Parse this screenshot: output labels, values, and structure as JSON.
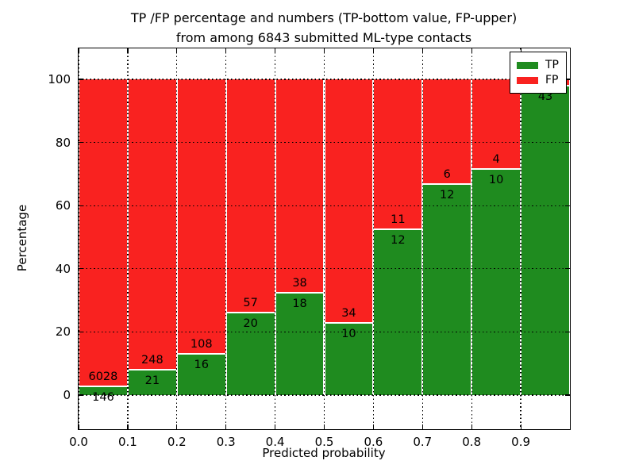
{
  "title": {
    "line1": "TP /FP percentage and numbers (TP-bottom value, FP-upper)",
    "line2": "from among 6843 submitted ML-type contacts"
  },
  "x_axis": {
    "label": "Predicted probability",
    "ticks": [
      "0.0",
      "0.1",
      "0.2",
      "0.3",
      "0.4",
      "0.5",
      "0.6",
      "0.7",
      "0.8",
      "0.9"
    ]
  },
  "y_axis": {
    "label": "Percentage",
    "ticks": [
      "0",
      "20",
      "40",
      "60",
      "80",
      "100"
    ],
    "tick_values": [
      0,
      20,
      40,
      60,
      80,
      100
    ]
  },
  "legend": {
    "items": [
      {
        "label": "TP",
        "color": "#1f8b1f"
      },
      {
        "label": "FP",
        "color": "#f92220"
      }
    ]
  },
  "colors": {
    "tp": "#1f8b1f",
    "fp": "#f92220",
    "background": "#ffffff",
    "grid": "#000000",
    "segment_divider": "#ffffff"
  },
  "chart_data": {
    "type": "bar",
    "stacked": true,
    "normalized_to": 100,
    "title": "TP /FP percentage and numbers (TP-bottom value, FP-upper) from among 6843 submitted ML-type contacts",
    "xlabel": "Predicted probability",
    "ylabel": "Percentage",
    "grid": "dotted",
    "legend_position": "upper right",
    "x_bin_edges": [
      0.0,
      0.1,
      0.2,
      0.3,
      0.4,
      0.5,
      0.6,
      0.7,
      0.8,
      0.9,
      1.0
    ],
    "ylim_displayed": [
      -10.8,
      109.3
    ],
    "total_contacts_stated": 6843,
    "bins": [
      {
        "range": "0.0-0.1",
        "tp_count_label": "146",
        "fp_count_label": "6028",
        "tp_pct": 2.4
      },
      {
        "range": "0.1-0.2",
        "tp_count_label": "21",
        "fp_count_label": "248",
        "tp_pct": 7.8
      },
      {
        "range": "0.2-0.3",
        "tp_count_label": "16",
        "fp_count_label": "108",
        "tp_pct": 12.9
      },
      {
        "range": "0.3-0.4",
        "tp_count_label": "20",
        "fp_count_label": "57",
        "tp_pct": 26.0
      },
      {
        "range": "0.4-0.5",
        "tp_count_label": "18",
        "fp_count_label": "38",
        "tp_pct": 32.1
      },
      {
        "range": "0.5-0.6",
        "tp_count_label": "10",
        "fp_count_label": "34",
        "tp_pct": 22.7
      },
      {
        "range": "0.6-0.7",
        "tp_count_label": "12",
        "fp_count_label": "11",
        "tp_pct": 52.2
      },
      {
        "range": "0.7-0.8",
        "tp_count_label": "12",
        "fp_count_label": "6",
        "tp_pct": 66.7
      },
      {
        "range": "0.8-0.9",
        "tp_count_label": "10",
        "fp_count_label": "4",
        "tp_pct": 71.4
      },
      {
        "range": "0.9-1.0",
        "tp_count_label": "43",
        "fp_count_label": "",
        "tp_pct": 97.7
      }
    ],
    "series": [
      {
        "name": "TP",
        "color": "#1f8b1f",
        "values_pct": [
          2.4,
          7.8,
          12.9,
          26.0,
          32.1,
          22.7,
          52.2,
          66.7,
          71.4,
          97.7
        ]
      },
      {
        "name": "FP",
        "color": "#f92220",
        "values_pct": [
          97.6,
          92.2,
          87.1,
          74.0,
          67.9,
          77.3,
          47.8,
          33.3,
          28.6,
          2.3
        ]
      }
    ]
  }
}
